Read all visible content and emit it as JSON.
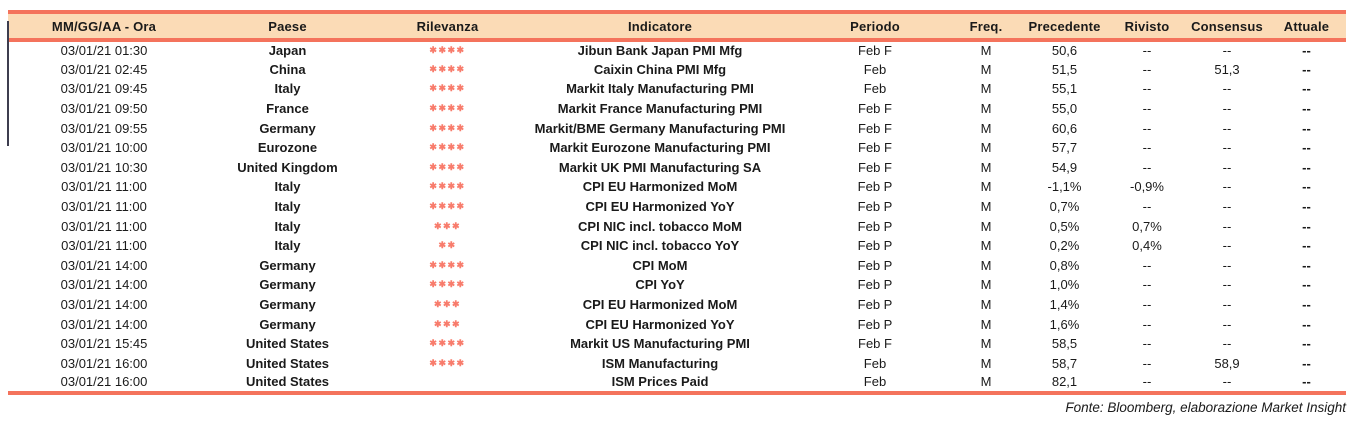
{
  "table": {
    "columns": [
      {
        "key": "datetime",
        "label": "MM/GG/AA - Ora"
      },
      {
        "key": "country",
        "label": "Paese"
      },
      {
        "key": "relevance",
        "label": "Rilevanza"
      },
      {
        "key": "indicator",
        "label": "Indicatore"
      },
      {
        "key": "period",
        "label": "Periodo"
      },
      {
        "key": "freq",
        "label": "Freq."
      },
      {
        "key": "previous",
        "label": "Precedente"
      },
      {
        "key": "revised",
        "label": "Rivisto"
      },
      {
        "key": "consensus",
        "label": "Consensus"
      },
      {
        "key": "actual",
        "label": "Attuale"
      }
    ],
    "rows": [
      {
        "datetime": "03/01/21 01:30",
        "country": "Japan",
        "relevance": 4,
        "indicator": "Jibun Bank Japan PMI Mfg",
        "period": "Feb F",
        "freq": "M",
        "previous": "50,6",
        "revised": "--",
        "consensus": "--",
        "actual": "--"
      },
      {
        "datetime": "03/01/21 02:45",
        "country": "China",
        "relevance": 4,
        "indicator": "Caixin China PMI Mfg",
        "period": "Feb",
        "freq": "M",
        "previous": "51,5",
        "revised": "--",
        "consensus": "51,3",
        "actual": "--"
      },
      {
        "datetime": "03/01/21 09:45",
        "country": "Italy",
        "relevance": 4,
        "indicator": "Markit Italy Manufacturing PMI",
        "period": "Feb",
        "freq": "M",
        "previous": "55,1",
        "revised": "--",
        "consensus": "--",
        "actual": "--"
      },
      {
        "datetime": "03/01/21 09:50",
        "country": "France",
        "relevance": 4,
        "indicator": "Markit France Manufacturing PMI",
        "period": "Feb F",
        "freq": "M",
        "previous": "55,0",
        "revised": "--",
        "consensus": "--",
        "actual": "--"
      },
      {
        "datetime": "03/01/21 09:55",
        "country": "Germany",
        "relevance": 4,
        "indicator": "Markit/BME Germany Manufacturing PMI",
        "period": "Feb F",
        "freq": "M",
        "previous": "60,6",
        "revised": "--",
        "consensus": "--",
        "actual": "--"
      },
      {
        "datetime": "03/01/21 10:00",
        "country": "Eurozone",
        "relevance": 4,
        "indicator": "Markit Eurozone Manufacturing PMI",
        "period": "Feb F",
        "freq": "M",
        "previous": "57,7",
        "revised": "--",
        "consensus": "--",
        "actual": "--"
      },
      {
        "datetime": "03/01/21 10:30",
        "country": "United Kingdom",
        "relevance": 4,
        "indicator": "Markit UK PMI Manufacturing SA",
        "period": "Feb F",
        "freq": "M",
        "previous": "54,9",
        "revised": "--",
        "consensus": "--",
        "actual": "--"
      },
      {
        "datetime": "03/01/21 11:00",
        "country": "Italy",
        "relevance": 4,
        "indicator": "CPI EU Harmonized MoM",
        "period": "Feb P",
        "freq": "M",
        "previous": "-1,1%",
        "revised": "-0,9%",
        "consensus": "--",
        "actual": "--"
      },
      {
        "datetime": "03/01/21 11:00",
        "country": "Italy",
        "relevance": 4,
        "indicator": "CPI EU Harmonized YoY",
        "period": "Feb P",
        "freq": "M",
        "previous": "0,7%",
        "revised": "--",
        "consensus": "--",
        "actual": "--"
      },
      {
        "datetime": "03/01/21 11:00",
        "country": "Italy",
        "relevance": 3,
        "indicator": "CPI NIC incl. tobacco MoM",
        "period": "Feb P",
        "freq": "M",
        "previous": "0,5%",
        "revised": "0,7%",
        "consensus": "--",
        "actual": "--"
      },
      {
        "datetime": "03/01/21 11:00",
        "country": "Italy",
        "relevance": 2,
        "indicator": "CPI NIC incl. tobacco YoY",
        "period": "Feb P",
        "freq": "M",
        "previous": "0,2%",
        "revised": "0,4%",
        "consensus": "--",
        "actual": "--"
      },
      {
        "datetime": "03/01/21 14:00",
        "country": "Germany",
        "relevance": 4,
        "indicator": "CPI MoM",
        "period": "Feb P",
        "freq": "M",
        "previous": "0,8%",
        "revised": "--",
        "consensus": "--",
        "actual": "--"
      },
      {
        "datetime": "03/01/21 14:00",
        "country": "Germany",
        "relevance": 4,
        "indicator": "CPI YoY",
        "period": "Feb P",
        "freq": "M",
        "previous": "1,0%",
        "revised": "--",
        "consensus": "--",
        "actual": "--"
      },
      {
        "datetime": "03/01/21 14:00",
        "country": "Germany",
        "relevance": 3,
        "indicator": "CPI EU Harmonized MoM",
        "period": "Feb P",
        "freq": "M",
        "previous": "1,4%",
        "revised": "--",
        "consensus": "--",
        "actual": "--"
      },
      {
        "datetime": "03/01/21 14:00",
        "country": "Germany",
        "relevance": 3,
        "indicator": "CPI EU Harmonized YoY",
        "period": "Feb P",
        "freq": "M",
        "previous": "1,6%",
        "revised": "--",
        "consensus": "--",
        "actual": "--"
      },
      {
        "datetime": "03/01/21 15:45",
        "country": "United States",
        "relevance": 4,
        "indicator": "Markit US Manufacturing PMI",
        "period": "Feb F",
        "freq": "M",
        "previous": "58,5",
        "revised": "--",
        "consensus": "--",
        "actual": "--"
      },
      {
        "datetime": "03/01/21 16:00",
        "country": "United States",
        "relevance": 4,
        "indicator": "ISM Manufacturing",
        "period": "Feb",
        "freq": "M",
        "previous": "58,7",
        "revised": "--",
        "consensus": "58,9",
        "actual": "--"
      },
      {
        "datetime": "03/01/21 16:00",
        "country": "United States",
        "relevance": 0,
        "indicator": "ISM Prices Paid",
        "period": "Feb",
        "freq": "M",
        "previous": "82,1",
        "revised": "--",
        "consensus": "--",
        "actual": "--"
      }
    ]
  },
  "icons": {
    "relevance_star": "✱"
  },
  "footer": {
    "source_note": "Fonte: Bloomberg, elaborazione Market Insight"
  },
  "colors": {
    "header_bg": "#FBDBB6",
    "accent": "#F4735C",
    "stars": "#F87C6C",
    "text": "#1A1A1A"
  }
}
